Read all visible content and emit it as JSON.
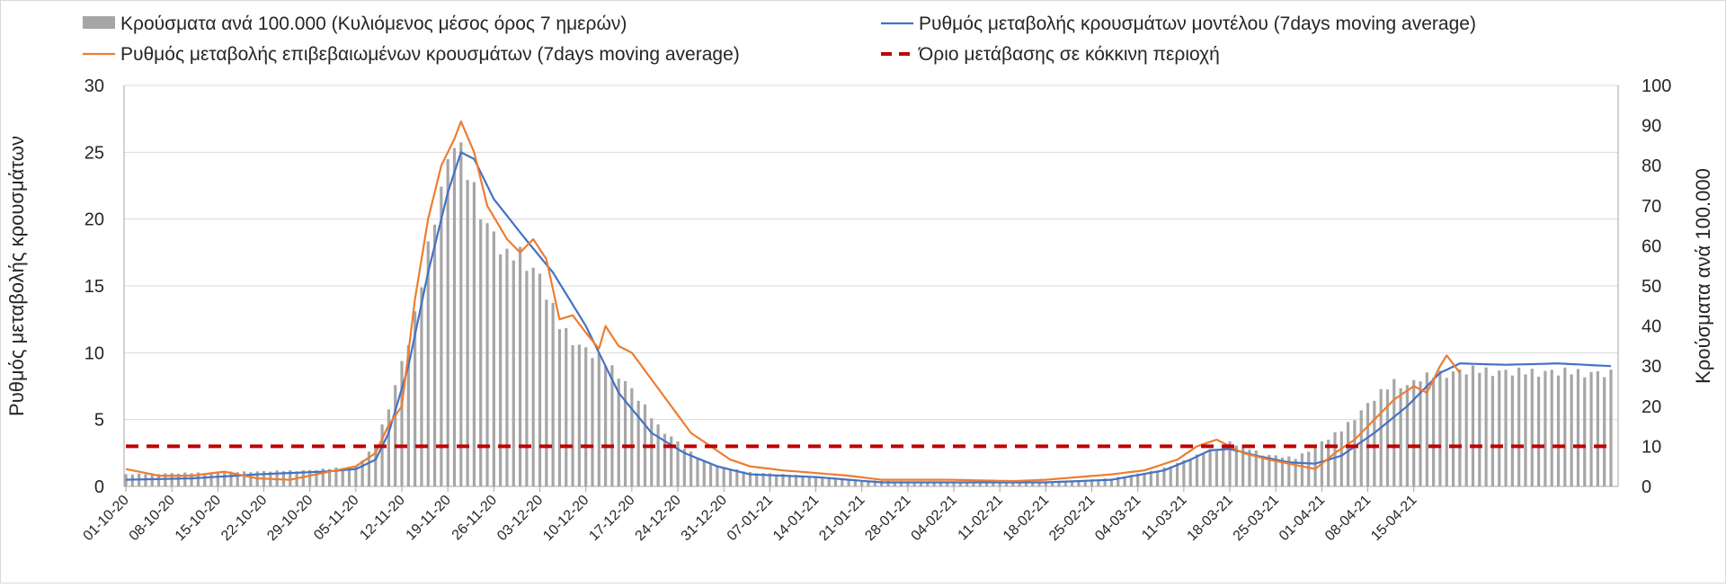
{
  "chart_data": {
    "type": "bar",
    "x_tick_labels": [
      "01-10-20",
      "08-10-20",
      "15-10-20",
      "22-10-20",
      "29-10-20",
      "05-11-20",
      "12-11-20",
      "19-11-20",
      "26-11-20",
      "03-12-20",
      "10-12-20",
      "17-12-20",
      "24-12-20",
      "31-12-20",
      "07-01-21",
      "14-01-21",
      "21-01-21",
      "28-01-21",
      "04-02-21",
      "11-02-21",
      "18-02-21",
      "25-02-21",
      "04-03-21",
      "11-03-21",
      "18-03-21",
      "25-03-21",
      "01-04-21",
      "08-04-21",
      "15-04-21"
    ],
    "ylabel_left": "Ρυθμός μεταβολής κρουσμάτων",
    "ylabel_right": "Κρούσματα ανά 100.000",
    "ylim_left": [
      0,
      30
    ],
    "yticks_left": [
      0,
      5,
      10,
      15,
      20,
      25,
      30
    ],
    "ylim_right": [
      0,
      100
    ],
    "yticks_right": [
      0,
      10,
      20,
      30,
      40,
      50,
      60,
      70,
      80,
      90,
      100
    ],
    "grid": "horizontal",
    "legend_position": "top",
    "series": [
      {
        "name": "Κρούσματα ανά 100.000 (Κυλιόμενος μέσος όρος 7 ημερών)",
        "type": "bar",
        "axis": "right",
        "color": "#a6a6a6",
        "keypoints": [
          [
            0,
            3
          ],
          [
            14,
            3.5
          ],
          [
            28,
            4
          ],
          [
            35,
            5
          ],
          [
            38,
            10
          ],
          [
            41,
            25
          ],
          [
            44,
            42
          ],
          [
            47,
            68
          ],
          [
            49,
            80
          ],
          [
            50,
            87
          ],
          [
            52,
            78
          ],
          [
            55,
            65
          ],
          [
            58,
            57
          ],
          [
            60,
            58
          ],
          [
            63,
            52
          ],
          [
            66,
            40
          ],
          [
            69,
            35
          ],
          [
            72,
            32
          ],
          [
            75,
            28
          ],
          [
            78,
            22
          ],
          [
            81,
            15
          ],
          [
            84,
            11
          ],
          [
            87,
            7
          ],
          [
            90,
            5
          ],
          [
            95,
            3.5
          ],
          [
            105,
            2.5
          ],
          [
            112,
            1.5
          ],
          [
            120,
            1.2
          ],
          [
            130,
            1
          ],
          [
            140,
            1
          ],
          [
            150,
            2
          ],
          [
            157,
            4
          ],
          [
            162,
            7
          ],
          [
            165,
            9
          ],
          [
            168,
            11
          ],
          [
            170,
            10
          ],
          [
            173,
            8
          ],
          [
            178,
            7
          ],
          [
            185,
            14
          ],
          [
            190,
            22
          ],
          [
            193,
            26
          ],
          [
            195,
            25
          ],
          [
            197,
            27
          ],
          [
            200,
            28
          ],
          [
            205,
            29
          ],
          [
            210,
            28.5
          ],
          [
            215,
            28.5
          ],
          [
            220,
            28.5
          ],
          [
            226,
            28
          ]
        ]
      },
      {
        "name": "Ρυθμός μεταβολής κρουσμάτων μοντέλου (7days moving average)",
        "type": "line",
        "axis": "left",
        "color": "#4472c4",
        "keypoints": [
          [
            0,
            0.5
          ],
          [
            10,
            0.6
          ],
          [
            20,
            0.9
          ],
          [
            30,
            1.1
          ],
          [
            35,
            1.3
          ],
          [
            38,
            2
          ],
          [
            40,
            4
          ],
          [
            43,
            9
          ],
          [
            46,
            16
          ],
          [
            49,
            22
          ],
          [
            51,
            25
          ],
          [
            53,
            24.5
          ],
          [
            56,
            21.5
          ],
          [
            60,
            19
          ],
          [
            65,
            16
          ],
          [
            70,
            12
          ],
          [
            75,
            7
          ],
          [
            80,
            4
          ],
          [
            85,
            2.5
          ],
          [
            90,
            1.5
          ],
          [
            95,
            0.9
          ],
          [
            105,
            0.7
          ],
          [
            115,
            0.3
          ],
          [
            125,
            0.3
          ],
          [
            140,
            0.3
          ],
          [
            150,
            0.5
          ],
          [
            158,
            1.2
          ],
          [
            162,
            2
          ],
          [
            165,
            2.7
          ],
          [
            168,
            2.8
          ],
          [
            172,
            2.3
          ],
          [
            177,
            1.8
          ],
          [
            181,
            1.7
          ],
          [
            185,
            2.3
          ],
          [
            190,
            4
          ],
          [
            195,
            6
          ],
          [
            200,
            8.5
          ],
          [
            203,
            9.2
          ],
          [
            210,
            9.1
          ],
          [
            218,
            9.2
          ],
          [
            226,
            9
          ]
        ]
      },
      {
        "name": "Ρυθμός μεταβολής επιβεβαιωμένων κρουσμάτων (7days moving average)",
        "type": "line",
        "axis": "left",
        "color": "#ed7d31",
        "keypoints": [
          [
            0,
            1.3
          ],
          [
            5,
            0.8
          ],
          [
            10,
            0.8
          ],
          [
            15,
            1.1
          ],
          [
            20,
            0.6
          ],
          [
            25,
            0.5
          ],
          [
            30,
            1
          ],
          [
            35,
            1.5
          ],
          [
            38,
            2.5
          ],
          [
            40,
            4.6
          ],
          [
            42,
            6
          ],
          [
            44,
            14
          ],
          [
            46,
            20
          ],
          [
            48,
            24
          ],
          [
            50,
            26
          ],
          [
            51,
            27.3
          ],
          [
            53,
            25
          ],
          [
            55,
            21
          ],
          [
            58,
            18.5
          ],
          [
            60,
            17.5
          ],
          [
            62,
            18.5
          ],
          [
            64,
            17
          ],
          [
            66,
            12.5
          ],
          [
            68,
            12.8
          ],
          [
            70,
            11.5
          ],
          [
            72,
            10.3
          ],
          [
            73,
            12
          ],
          [
            75,
            10.5
          ],
          [
            77,
            10
          ],
          [
            80,
            8
          ],
          [
            83,
            6
          ],
          [
            86,
            4
          ],
          [
            89,
            3
          ],
          [
            92,
            2
          ],
          [
            95,
            1.5
          ],
          [
            100,
            1.2
          ],
          [
            105,
            1
          ],
          [
            110,
            0.8
          ],
          [
            115,
            0.5
          ],
          [
            125,
            0.5
          ],
          [
            135,
            0.4
          ],
          [
            140,
            0.5
          ],
          [
            145,
            0.7
          ],
          [
            150,
            0.9
          ],
          [
            155,
            1.2
          ],
          [
            160,
            2
          ],
          [
            163,
            3
          ],
          [
            166,
            3.5
          ],
          [
            170,
            2.5
          ],
          [
            174,
            2
          ],
          [
            178,
            1.6
          ],
          [
            181,
            1.3
          ],
          [
            184,
            2.5
          ],
          [
            187,
            3.5
          ],
          [
            190,
            5
          ],
          [
            193,
            6.5
          ],
          [
            196,
            7.5
          ],
          [
            198,
            7
          ],
          [
            200,
            9
          ],
          [
            201,
            9.8
          ],
          [
            203,
            8.5
          ]
        ]
      },
      {
        "name": "Όριο μετάβασης σε κόκκινη περιοχή",
        "type": "line",
        "style": "dashed",
        "axis": "left",
        "color": "#c00000",
        "y_constant": 3
      }
    ]
  }
}
